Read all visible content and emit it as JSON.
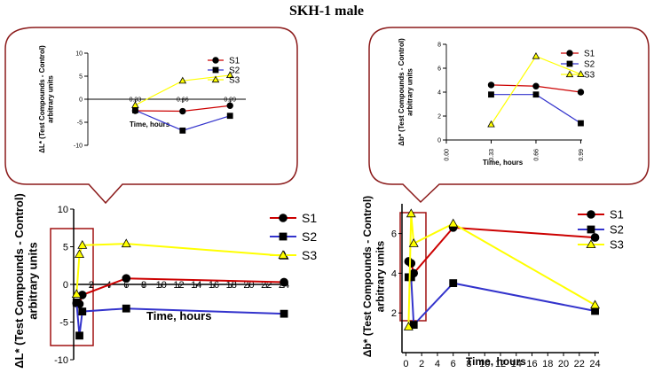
{
  "page_title": "SKH-1 male",
  "chart_data": [
    {
      "id": "tl",
      "type": "line",
      "xlabel": "Time, hours",
      "ylabel": "ΔL* (Test Compounds - Control)",
      "ylabel2": "arbitrary units",
      "xticks": [
        0.33,
        0.66,
        0.99
      ],
      "xtick_labels": [
        "0.33",
        "0.66",
        "0.99"
      ],
      "xtick_on_axis": true,
      "yticks": [
        -10,
        -5,
        0,
        5,
        10
      ],
      "ylim": [
        -10,
        10
      ],
      "series": [
        {
          "name": "S1",
          "color": "#cc0000",
          "marker": "circle",
          "x": [
            0.33,
            0.66,
            0.99
          ],
          "y": [
            -2.5,
            -2.6,
            -1.4
          ]
        },
        {
          "name": "S2",
          "color": "#3333cc",
          "marker": "square",
          "x": [
            0.33,
            0.66,
            0.99
          ],
          "y": [
            -2.4,
            -6.8,
            -3.6
          ]
        },
        {
          "name": "S3",
          "color": "#ffff00",
          "marker": "triangle",
          "x": [
            0.33,
            0.66,
            0.99
          ],
          "y": [
            -1.3,
            4.0,
            5.2
          ]
        }
      ]
    },
    {
      "id": "tr",
      "type": "line",
      "xlabel": "Time, hours",
      "ylabel": "Δb* (Test Compounds - Control)",
      "ylabel2": "arbitrary units",
      "xticks": [
        0.0,
        0.33,
        0.66,
        0.99
      ],
      "xtick_labels": [
        "0.00",
        "0.33",
        "0.66",
        "0.99"
      ],
      "xtick_rotated": true,
      "yticks": [
        0,
        2,
        4,
        6,
        8
      ],
      "ylim": [
        0,
        8
      ],
      "series": [
        {
          "name": "S1",
          "color": "#cc0000",
          "marker": "circle",
          "x": [
            0.33,
            0.66,
            0.99
          ],
          "y": [
            4.6,
            4.5,
            4.0
          ]
        },
        {
          "name": "S2",
          "color": "#3333cc",
          "marker": "square",
          "x": [
            0.33,
            0.66,
            0.99
          ],
          "y": [
            3.8,
            3.8,
            1.4
          ]
        },
        {
          "name": "S3",
          "color": "#ffff00",
          "marker": "triangle",
          "x": [
            0.33,
            0.66,
            0.99
          ],
          "y": [
            1.3,
            7.0,
            5.5
          ]
        }
      ]
    },
    {
      "id": "bl",
      "type": "line",
      "xlabel": "Time, hours",
      "ylabel": "ΔL* (Test Compounds - Control)",
      "ylabel2": "arbitrary units",
      "xticks": [
        2,
        4,
        6,
        8,
        10,
        12,
        14,
        16,
        18,
        20,
        22,
        24
      ],
      "xtick_on_axis": true,
      "yticks": [
        -10,
        -5,
        0,
        5,
        10
      ],
      "ylim": [
        -10,
        10
      ],
      "xlim": [
        0,
        24.5
      ],
      "series": [
        {
          "name": "S1",
          "color": "#cc0000",
          "marker": "circle",
          "x": [
            0.33,
            0.66,
            0.99,
            6,
            24
          ],
          "y": [
            -2.5,
            -2.6,
            -1.4,
            0.8,
            0.3
          ]
        },
        {
          "name": "S2",
          "color": "#3333cc",
          "marker": "square",
          "x": [
            0.33,
            0.66,
            0.99,
            6,
            24
          ],
          "y": [
            -2.4,
            -6.8,
            -3.6,
            -3.2,
            -3.9
          ]
        },
        {
          "name": "S3",
          "color": "#ffff00",
          "marker": "triangle",
          "x": [
            0.33,
            0.66,
            0.99,
            6,
            24
          ],
          "y": [
            -1.3,
            4.0,
            5.2,
            5.4,
            3.8
          ]
        }
      ]
    },
    {
      "id": "br",
      "type": "line",
      "xlabel": "Time, hours",
      "ylabel": "Δb* (Test Compounds - Control)",
      "ylabel2": "arbitrary units",
      "xticks": [
        0,
        2,
        4,
        6,
        8,
        10,
        12,
        14,
        16,
        18,
        20,
        22,
        24
      ],
      "yticks": [
        2,
        4,
        6
      ],
      "ylim": [
        0,
        7.5
      ],
      "xlim": [
        -0.5,
        24.5
      ],
      "series": [
        {
          "name": "S1",
          "color": "#cc0000",
          "marker": "circle",
          "x": [
            0.33,
            0.66,
            0.99,
            6,
            24
          ],
          "y": [
            4.6,
            4.5,
            4.0,
            6.3,
            5.8
          ]
        },
        {
          "name": "S2",
          "color": "#3333cc",
          "marker": "square",
          "x": [
            0.33,
            0.66,
            0.99,
            6,
            24
          ],
          "y": [
            3.8,
            3.8,
            1.4,
            3.5,
            2.1
          ]
        },
        {
          "name": "S3",
          "color": "#ffff00",
          "marker": "triangle",
          "x": [
            0.33,
            0.66,
            0.99,
            6,
            24
          ],
          "y": [
            1.3,
            7.0,
            5.5,
            6.5,
            2.4
          ]
        }
      ]
    }
  ]
}
